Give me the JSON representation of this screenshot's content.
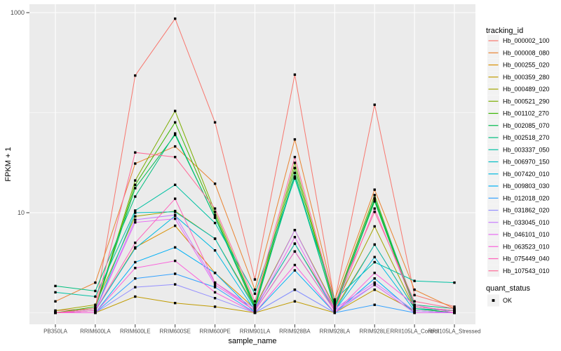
{
  "chart_data": {
    "type": "line",
    "title": "",
    "xlabel": "sample_name",
    "ylabel": "FPKM + 1",
    "y_scale": "log10",
    "y_major_breaks": [
      10,
      1000
    ],
    "y_minor_breaks": [
      1,
      100
    ],
    "y_tick_labels": [
      "1000",
      "10"
    ],
    "ylim_log": [
      0.85,
      3.1
    ],
    "grid": true,
    "legend_position": "right",
    "legend_title": "tracking_id",
    "quant_legend_title": "quant_status",
    "quant_legend_value": "OK",
    "categories": [
      "PB350LA",
      "RRIM600LA",
      "RRIM600LE",
      "RRIM600SE",
      "RRIM600PE",
      "RRIM901LA",
      "RRIM928BA",
      "RRIM928LA",
      "RRIM928LE",
      "RRII105LA_Control",
      "RRII105LA_Stressed"
    ],
    "series": [
      {
        "name": "Hb_000002_100",
        "color": "#F8766D",
        "values": [
          1.05,
          1.1,
          235,
          870,
          80,
          2.15,
          240,
          1.3,
          120,
          1.5,
          1.15
        ]
      },
      {
        "name": "Hb_000008_080",
        "color": "#EA8331",
        "values": [
          1.3,
          2.0,
          31,
          46,
          19.5,
          1.7,
          54,
          1.35,
          17,
          1.7,
          1.1
        ]
      },
      {
        "name": "Hb_000255_020",
        "color": "#D89000",
        "values": [
          1.0,
          1.05,
          4.5,
          7.4,
          2.5,
          1.1,
          4.9,
          1.1,
          4.8,
          1.1,
          1.0
        ]
      },
      {
        "name": "Hb_000359_280",
        "color": "#C09B00",
        "values": [
          1.0,
          1.0,
          1.45,
          1.25,
          1.15,
          1.0,
          1.3,
          1.0,
          1.7,
          1.05,
          1.0
        ]
      },
      {
        "name": "Hb_000489_020",
        "color": "#A3A500",
        "values": [
          1.05,
          1.2,
          9.2,
          10.4,
          5.5,
          1.15,
          6.7,
          1.15,
          7.3,
          1.1,
          1.05
        ]
      },
      {
        "name": "Hb_000521_290",
        "color": "#7CAE00",
        "values": [
          1.0,
          1.1,
          21,
          104,
          10.2,
          1.2,
          31.5,
          1.2,
          15,
          1.1,
          1.05
        ]
      },
      {
        "name": "Hb_001102_270",
        "color": "#39B600",
        "values": [
          1.0,
          1.15,
          19,
          80,
          9.5,
          1.15,
          28,
          1.2,
          13.5,
          1.15,
          1.05
        ]
      },
      {
        "name": "Hb_002085_070",
        "color": "#00BB4E",
        "values": [
          1.0,
          1.1,
          17.6,
          60,
          9.0,
          1.1,
          25,
          1.1,
          13,
          1.1,
          1.0
        ]
      },
      {
        "name": "Hb_002518_270",
        "color": "#00BF7D",
        "values": [
          1.85,
          1.65,
          14.5,
          62,
          8.9,
          1.2,
          23,
          1.15,
          14,
          1.2,
          1.1
        ]
      },
      {
        "name": "Hb_003337_050",
        "color": "#00C1A3",
        "values": [
          1.6,
          1.45,
          10.5,
          19,
          7.9,
          1.55,
          22,
          1.35,
          3.2,
          2.08,
          2.0
        ]
      },
      {
        "name": "Hb_006970_150",
        "color": "#00BFC4",
        "values": [
          1.0,
          1.05,
          10,
          10.2,
          5.5,
          1.1,
          4.9,
          1.05,
          4.8,
          1.1,
          1.05
        ]
      },
      {
        "name": "Hb_007420_010",
        "color": "#00BAE0",
        "values": [
          1.0,
          1.05,
          4.4,
          9.3,
          4.2,
          1.05,
          4.1,
          1.05,
          3.6,
          1.05,
          1.0
        ]
      },
      {
        "name": "Hb_009803_030",
        "color": "#00B0F6",
        "values": [
          1.0,
          1.0,
          3.2,
          4.5,
          2.5,
          1.0,
          2.65,
          1.0,
          2.2,
          1.0,
          1.0
        ]
      },
      {
        "name": "Hb_012018_020",
        "color": "#35A2FF",
        "values": [
          1.0,
          1.0,
          2.2,
          2.45,
          1.8,
          1.0,
          1.7,
          1.0,
          1.2,
          1.0,
          1.0
        ]
      },
      {
        "name": "Hb_031862_020",
        "color": "#9590FF",
        "values": [
          1.0,
          1.0,
          1.8,
          1.92,
          1.4,
          1.0,
          1.7,
          1.0,
          1.9,
          1.0,
          1.0
        ]
      },
      {
        "name": "Hb_033045_010",
        "color": "#C77CFF",
        "values": [
          1.0,
          1.05,
          8.5,
          9.5,
          2.0,
          1.1,
          6.7,
          1.1,
          2.0,
          1.05,
          1.0
        ]
      },
      {
        "name": "Hb_046101_010",
        "color": "#E76BF3",
        "values": [
          1.0,
          1.05,
          8.0,
          8.7,
          1.9,
          1.05,
          5.7,
          1.05,
          1.9,
          1.0,
          1.0
        ]
      },
      {
        "name": "Hb_063523_010",
        "color": "#FA62DB",
        "values": [
          1.0,
          1.0,
          2.8,
          3.3,
          1.6,
          1.0,
          3.0,
          1.0,
          2.5,
          1.2,
          1.0
        ]
      },
      {
        "name": "Hb_075449_040",
        "color": "#FF62BC",
        "values": [
          1.0,
          1.05,
          5.0,
          13.8,
          2.0,
          1.05,
          4.1,
          1.05,
          11,
          1.15,
          1.05
        ]
      },
      {
        "name": "Hb_107543_010",
        "color": "#FF6A98",
        "values": [
          1.0,
          1.1,
          40,
          36,
          11,
          1.3,
          36,
          1.25,
          10.2,
          1.3,
          1.1
        ]
      }
    ],
    "colors": {
      "panel_bg": "#EBEBEB",
      "grid": "#FFFFFF",
      "tick_text": "#4D4D4D",
      "axis_title": "#000000",
      "legend_key_bg": "#F2F2F2",
      "point": "#000000"
    }
  }
}
